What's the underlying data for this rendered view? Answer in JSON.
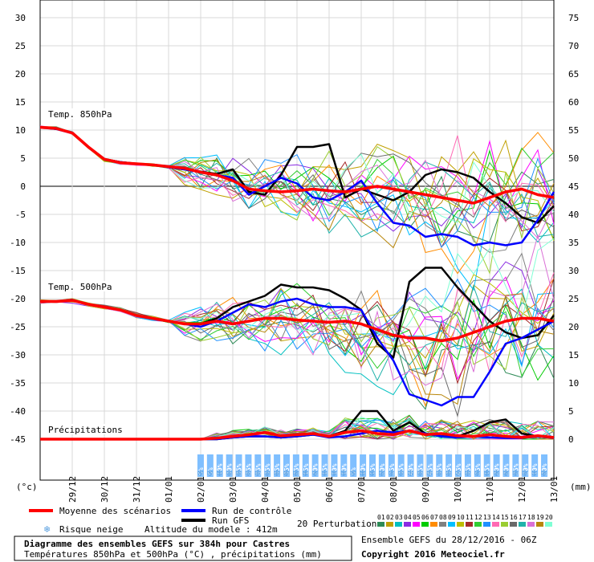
{
  "chart_data": {
    "type": "line",
    "left_axis": {
      "label": "(°c)",
      "ticks": [
        30,
        25,
        20,
        15,
        10,
        5,
        0,
        -5,
        -10,
        -15,
        -20,
        -25,
        -30,
        -35,
        -40,
        -45
      ],
      "range": [
        -45,
        30
      ]
    },
    "right_axis": {
      "label": "(mm)",
      "ticks": [
        75,
        70,
        65,
        60,
        55,
        50,
        45,
        40,
        35,
        30,
        25,
        20,
        15,
        10,
        5,
        0
      ],
      "range": [
        0,
        75
      ]
    },
    "x_labels": [
      "29/12",
      "30/12",
      "31/12",
      "01/01",
      "02/01",
      "03/01",
      "04/01",
      "05/01",
      "06/01",
      "07/01",
      "08/01",
      "09/01",
      "10/01",
      "11/01",
      "12/01",
      "13/01"
    ],
    "x_domain_hours": [
      0,
      384
    ],
    "panel_labels": {
      "t850": "Temp. 850hPa",
      "t500": "Temp. 500hPa",
      "precip": "Précipitations"
    },
    "series_colors": {
      "mean": "#ff0000",
      "control": "#0000ff",
      "gfs": "#000000",
      "perturbations": [
        "#2e8b57",
        "#c0a000",
        "#00c0c0",
        "#8a2be2",
        "#ff00ff",
        "#00cc00",
        "#ff8c00",
        "#808080",
        "#00bfff",
        "#bdbd00",
        "#a52a2a",
        "#32cd32",
        "#1e90ff",
        "#ff69b4",
        "#9acd32",
        "#696969",
        "#20b2aa",
        "#da70d6",
        "#b8860b",
        "#7fffd4"
      ]
    },
    "t850": {
      "hours": [
        0,
        12,
        24,
        36,
        48,
        60,
        72,
        84,
        96,
        108,
        120,
        132,
        144,
        156,
        168,
        180,
        192,
        204,
        216,
        228,
        240,
        252,
        264,
        276,
        288,
        300,
        312,
        324,
        336,
        348,
        360,
        372,
        384
      ],
      "mean": [
        10.5,
        10.3,
        9.5,
        7.0,
        4.8,
        4.2,
        4.0,
        3.8,
        3.5,
        3.2,
        2.5,
        2.0,
        1.0,
        -0.5,
        -0.8,
        -1.0,
        -0.8,
        -0.5,
        -0.8,
        -1.0,
        -0.5,
        0.0,
        -0.5,
        -1.0,
        -1.5,
        -2.0,
        -2.5,
        -3.0,
        -2.0,
        -1.0,
        -0.5,
        -1.5,
        -2.0
      ],
      "control": [
        10.5,
        10.2,
        9.5,
        7.0,
        4.8,
        4.3,
        4.0,
        3.8,
        3.4,
        3.0,
        2.5,
        2.0,
        1.5,
        -1.5,
        0.0,
        1.5,
        0.5,
        -2.0,
        -2.5,
        -1.0,
        1.0,
        -3.0,
        -6.5,
        -7.0,
        -9.0,
        -8.5,
        -9.0,
        -10.5,
        -10.0,
        -10.5,
        -10.0,
        -6.0,
        -1.0
      ],
      "gfs": [
        10.5,
        10.2,
        9.5,
        7.0,
        4.8,
        4.3,
        4.0,
        3.8,
        3.4,
        3.0,
        2.6,
        2.2,
        3.0,
        -1.0,
        -1.5,
        2.0,
        7.0,
        7.0,
        7.5,
        -2.0,
        -0.5,
        -1.5,
        -2.5,
        -1.0,
        2.0,
        3.0,
        2.5,
        1.5,
        -1.0,
        -3.0,
        -5.5,
        -6.5,
        -3.5
      ]
    },
    "t500": {
      "hours": [
        0,
        12,
        24,
        36,
        48,
        60,
        72,
        84,
        96,
        108,
        120,
        132,
        144,
        156,
        168,
        180,
        192,
        204,
        216,
        228,
        240,
        252,
        264,
        276,
        288,
        300,
        312,
        324,
        336,
        348,
        360,
        372,
        384
      ],
      "mean": [
        -20.5,
        -20.5,
        -20.3,
        -21.0,
        -21.5,
        -22.0,
        -23.0,
        -23.5,
        -24.0,
        -24.5,
        -24.5,
        -24.0,
        -24.5,
        -24.0,
        -23.5,
        -23.5,
        -23.8,
        -24.0,
        -24.2,
        -24.0,
        -24.5,
        -25.5,
        -26.5,
        -27.0,
        -27.0,
        -27.5,
        -27.0,
        -26.0,
        -25.0,
        -24.0,
        -23.5,
        -23.5,
        -24.0
      ],
      "control": [
        -20.5,
        -20.5,
        -20.2,
        -21.0,
        -21.5,
        -22.0,
        -23.0,
        -23.5,
        -24.0,
        -24.5,
        -25.0,
        -24.0,
        -22.5,
        -21.0,
        -21.5,
        -20.5,
        -20.0,
        -21.0,
        -21.5,
        -21.5,
        -22.0,
        -27.0,
        -31.0,
        -37.0,
        -38.0,
        -39.0,
        -37.5,
        -37.5,
        -33.0,
        -28.0,
        -27.0,
        -25.5,
        -24.0
      ],
      "gfs": [
        -20.5,
        -20.5,
        -20.2,
        -21.0,
        -21.5,
        -22.0,
        -23.0,
        -23.5,
        -24.0,
        -24.5,
        -24.5,
        -23.5,
        -21.5,
        -20.5,
        -19.5,
        -17.5,
        -18.0,
        -18.0,
        -18.5,
        -20.0,
        -22.0,
        -28.0,
        -30.5,
        -17.0,
        -14.5,
        -14.5,
        -18.0,
        -21.0,
        -24.0,
        -26.0,
        -27.0,
        -26.5,
        -23.0
      ]
    },
    "precip_mm": {
      "hours": [
        0,
        12,
        24,
        36,
        48,
        60,
        72,
        84,
        96,
        108,
        120,
        132,
        144,
        156,
        168,
        180,
        192,
        204,
        216,
        228,
        240,
        252,
        264,
        276,
        288,
        300,
        312,
        324,
        336,
        348,
        360,
        372,
        384
      ],
      "mean": [
        0,
        0,
        0,
        0,
        0,
        0,
        0,
        0,
        0,
        0,
        0,
        0.2,
        0.5,
        0.8,
        1.2,
        0.6,
        0.8,
        1.0,
        0.5,
        1.2,
        1.5,
        1.0,
        0.8,
        1.5,
        0.8,
        1.0,
        0.6,
        0.5,
        0.8,
        0.5,
        0.3,
        0.6,
        0.3
      ],
      "control": [
        0,
        0,
        0,
        0,
        0,
        0,
        0,
        0,
        0,
        0,
        0,
        0,
        0.3,
        0.5,
        0.5,
        0.3,
        0.5,
        0.8,
        0.3,
        0.5,
        1.0,
        1.5,
        1.2,
        1.5,
        1.0,
        0.5,
        0.3,
        0.5,
        0.3,
        0.2,
        0.2,
        0.5,
        0.2
      ],
      "gfs": [
        0,
        0,
        0,
        0,
        0,
        0,
        0,
        0,
        0,
        0,
        0,
        0,
        0.3,
        0.5,
        0.5,
        0.3,
        0.5,
        0.8,
        0.5,
        1.5,
        5.0,
        5.0,
        1.5,
        3.0,
        1.0,
        0.5,
        0.5,
        1.5,
        3.0,
        3.5,
        1.0,
        0.5,
        0.3
      ]
    },
    "snow_risk": {
      "marker": "❄",
      "percentages": [
        "5%",
        "5%",
        "10%",
        "30%",
        "35%",
        "35%",
        "35%",
        "35%",
        "35%",
        "35%",
        "25%",
        "15%",
        "20%",
        "15%",
        "10%",
        "10%",
        "5%",
        "10%",
        "15%",
        "20%",
        "25%",
        "35%",
        "40%",
        "35%",
        "45%",
        "35%",
        "35%",
        "45%",
        "35%",
        "25%",
        "15%",
        "20%",
        "20%",
        "25%",
        "20%",
        "10%",
        "20%"
      ]
    }
  },
  "legend": {
    "mean": "Moyenne des scénarios",
    "control": "Run de contrôle",
    "gfs": "Run GFS",
    "snow": "Risque neige",
    "altitude": "Altitude du modele : 412m",
    "perturbations_label": "20 Perturbations",
    "perturbation_ids": [
      "01",
      "02",
      "03",
      "04",
      "05",
      "06",
      "07",
      "08",
      "09",
      "10",
      "11",
      "12",
      "13",
      "14",
      "15",
      "16",
      "17",
      "18",
      "19",
      "20"
    ]
  },
  "footer": {
    "title": "Diagramme des ensembles GEFS sur 384h pour Castres",
    "subtitle": "Températures 850hPa et 500hPa (°C) , précipitations (mm)",
    "run_info": "Ensemble GEFS du 28/12/2016 - 06Z",
    "copyright": "Copyright 2016 Meteociel.fr"
  }
}
